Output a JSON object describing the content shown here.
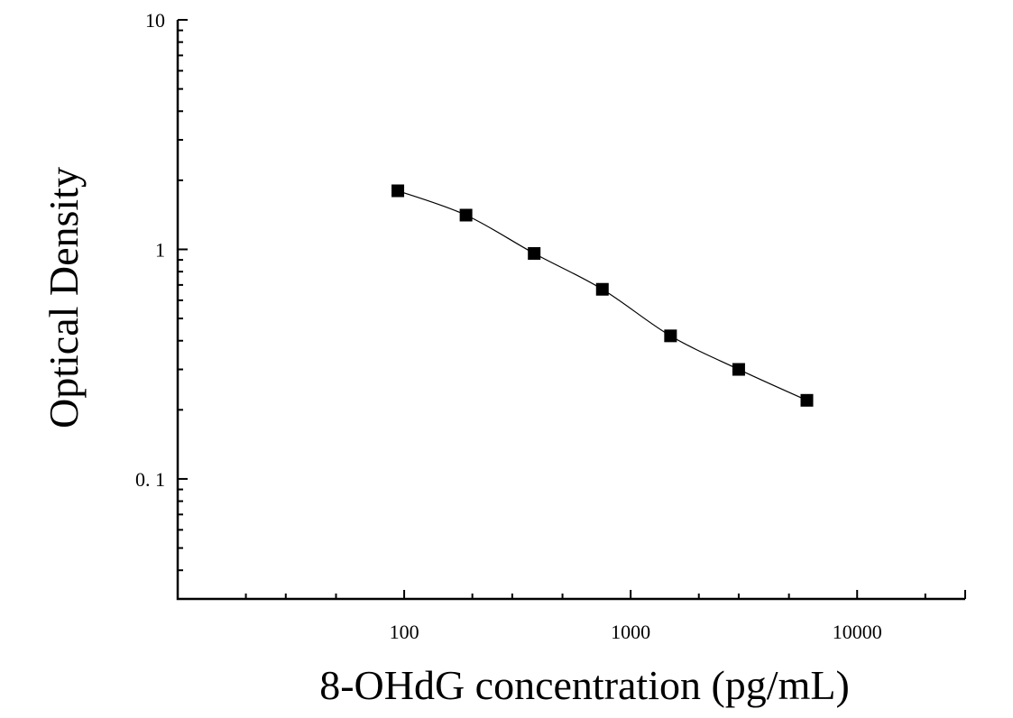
{
  "chart_data": {
    "type": "scatter",
    "title": "",
    "xlabel": "8-OHdG concentration (pg/mL)",
    "ylabel": "Optical Density",
    "xscale": "log",
    "yscale": "log",
    "xlim": [
      10,
      30000
    ],
    "ylim": [
      0.03,
      10
    ],
    "xticks": [
      {
        "value": 100,
        "label": "100"
      },
      {
        "value": 1000,
        "label": "1000"
      },
      {
        "value": 10000,
        "label": "10000"
      }
    ],
    "yticks": [
      {
        "value": 0.1,
        "label": "0. 1"
      },
      {
        "value": 1,
        "label": "1"
      },
      {
        "value": 10,
        "label": "10"
      }
    ],
    "grid": false,
    "legend": "none",
    "series": [
      {
        "x": [
          93.75,
          187.5,
          375,
          750,
          1500,
          3000,
          6000
        ],
        "y": [
          1.8,
          1.41,
          0.96,
          0.67,
          0.42,
          0.3,
          0.22
        ],
        "marker": "square",
        "fit": "4PL"
      }
    ],
    "colors": {
      "marker": "#000000",
      "line": "#000000"
    }
  }
}
